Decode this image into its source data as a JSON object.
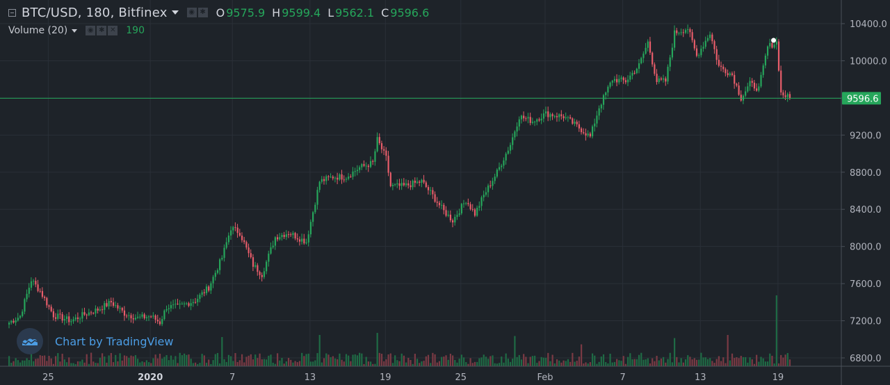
{
  "header": {
    "symbol": "BTC/USD, 180, Bitfinex",
    "open_label": "O",
    "open": "9575.9",
    "high_label": "H",
    "high": "9599.4",
    "low_label": "L",
    "low": "9562.1",
    "close_label": "C",
    "close": "9596.6"
  },
  "volume": {
    "label": "Volume (20)",
    "value": "190"
  },
  "watermark": {
    "text": "Chart by TradingView"
  },
  "colors": {
    "background": "#1e2329",
    "up": "#26a65b",
    "down": "#e85d6a",
    "up_volume": "#1f6b45",
    "down_volume": "#7a3a44",
    "grid": "#2a3038",
    "price_line": "#26a65b"
  },
  "icons": [
    "collapse-icon",
    "eye-icon",
    "gear-icon",
    "close-icon",
    "tradingview-logo-icon"
  ],
  "chart_data": {
    "type": "candlestick",
    "ylim": [
      6700,
      10500
    ],
    "yticks": [
      6800,
      7200,
      7600,
      8000,
      8400,
      8800,
      9200,
      9600,
      10000,
      10400
    ],
    "ytick_labels": [
      "6800.0",
      "7200.0",
      "7600.0",
      "8000.0",
      "8400.0",
      "8800.0",
      "9200.0",
      "9600.0",
      "10000.0",
      "10400.0"
    ],
    "xtick_labels": [
      "25",
      "2020",
      "7",
      "13",
      "19",
      "25",
      "Feb",
      "7",
      "13",
      "19"
    ],
    "xtick_index": [
      18,
      64,
      101,
      136,
      170,
      204,
      242,
      277,
      312,
      347
    ],
    "last_price": 9596.6,
    "last_price_label": "9596.6",
    "close_path": [
      [
        0,
        7180
      ],
      [
        5,
        7250
      ],
      [
        10,
        7640
      ],
      [
        14,
        7520
      ],
      [
        20,
        7260
      ],
      [
        28,
        7200
      ],
      [
        34,
        7270
      ],
      [
        40,
        7320
      ],
      [
        46,
        7400
      ],
      [
        52,
        7280
      ],
      [
        58,
        7230
      ],
      [
        64,
        7250
      ],
      [
        68,
        7180
      ],
      [
        71,
        7350
      ],
      [
        76,
        7350
      ],
      [
        84,
        7420
      ],
      [
        90,
        7560
      ],
      [
        96,
        7880
      ],
      [
        100,
        8200
      ],
      [
        104,
        8150
      ],
      [
        110,
        7800
      ],
      [
        114,
        7700
      ],
      [
        120,
        8100
      ],
      [
        126,
        8150
      ],
      [
        134,
        8050
      ],
      [
        140,
        8700
      ],
      [
        146,
        8750
      ],
      [
        152,
        8750
      ],
      [
        158,
        8850
      ],
      [
        164,
        8900
      ],
      [
        166,
        9150
      ],
      [
        170,
        8950
      ],
      [
        172,
        8650
      ],
      [
        178,
        8650
      ],
      [
        186,
        8700
      ],
      [
        190,
        8580
      ],
      [
        196,
        8380
      ],
      [
        200,
        8280
      ],
      [
        206,
        8500
      ],
      [
        210,
        8350
      ],
      [
        214,
        8550
      ],
      [
        220,
        8800
      ],
      [
        226,
        9100
      ],
      [
        230,
        9400
      ],
      [
        236,
        9350
      ],
      [
        242,
        9430
      ],
      [
        250,
        9400
      ],
      [
        258,
        9260
      ],
      [
        262,
        9180
      ],
      [
        266,
        9500
      ],
      [
        272,
        9800
      ],
      [
        278,
        9780
      ],
      [
        284,
        9950
      ],
      [
        288,
        10200
      ],
      [
        292,
        9780
      ],
      [
        296,
        9780
      ],
      [
        300,
        10300
      ],
      [
        306,
        10350
      ],
      [
        310,
        10050
      ],
      [
        316,
        10300
      ],
      [
        320,
        9940
      ],
      [
        326,
        9850
      ],
      [
        330,
        9600
      ],
      [
        334,
        9750
      ],
      [
        338,
        9700
      ],
      [
        342,
        10150
      ],
      [
        346,
        10200
      ],
      [
        348,
        9650
      ],
      [
        352,
        9597
      ]
    ],
    "volume_spikes": [
      [
        10,
        160
      ],
      [
        96,
        280
      ],
      [
        140,
        300
      ],
      [
        166,
        320
      ],
      [
        228,
        290
      ],
      [
        258,
        210
      ],
      [
        300,
        270
      ],
      [
        324,
        300
      ],
      [
        346,
        680
      ]
    ],
    "volume_ylim": [
      0,
      900
    ]
  }
}
